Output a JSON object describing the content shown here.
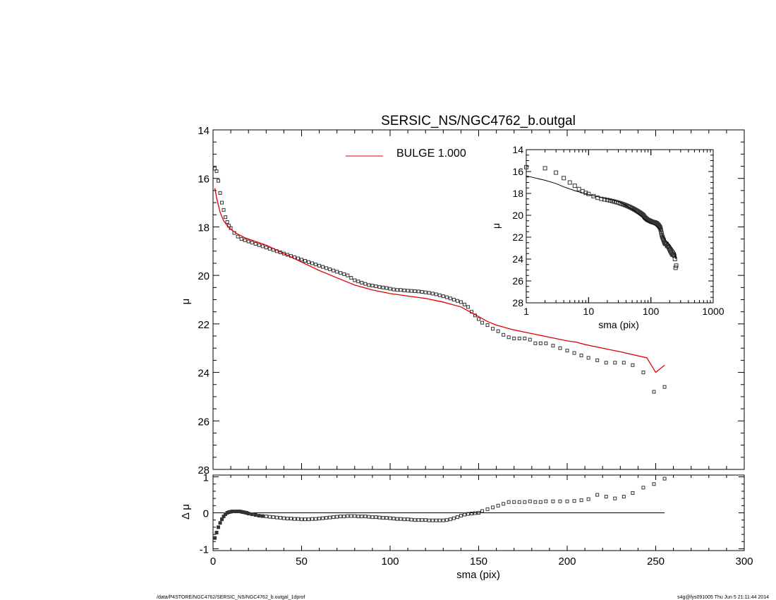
{
  "footer": {
    "path": "/data/P4STORE/NGC4762/SERSIC_NS/NGC4762_b.outgal_1dprof",
    "stamp": "s4g@fys091005  Thu Jun  5 21:11:44 2014"
  },
  "colors": {
    "model": "#e00000",
    "data": "#333333",
    "axes": "#000000",
    "zero_line": "#000000"
  },
  "chart_data": [
    {
      "type": "scatter",
      "panel": "main-profile",
      "title": "SERSIC_NS/NGC4762_b.outgal",
      "xlabel": "",
      "ylabel": "μ",
      "xlim": [
        0,
        300
      ],
      "ylim": [
        28,
        14
      ],
      "y_inverted": true,
      "x_tick_labels": [],
      "y_ticks": [
        14,
        16,
        18,
        20,
        22,
        24,
        26,
        28
      ],
      "legend": {
        "placement": "top-center",
        "entries": [
          {
            "label": "BULGE  1.000",
            "color": "#e00000",
            "style": "line"
          }
        ]
      },
      "observed": {
        "marker": "square",
        "x": [
          1,
          2,
          3,
          4,
          5,
          6,
          7,
          8,
          9,
          10,
          12,
          14,
          16,
          18,
          20,
          22,
          24,
          26,
          28,
          30,
          32,
          34,
          36,
          38,
          40,
          42,
          44,
          46,
          48,
          50,
          52,
          54,
          56,
          58,
          60,
          62,
          64,
          66,
          68,
          70,
          72,
          74,
          76,
          78,
          80,
          82,
          84,
          86,
          88,
          90,
          92,
          94,
          96,
          98,
          100,
          102,
          104,
          106,
          108,
          110,
          112,
          114,
          116,
          118,
          120,
          122,
          124,
          126,
          128,
          130,
          132,
          134,
          136,
          138,
          140,
          142,
          144,
          146,
          148,
          150,
          152,
          155,
          158,
          161,
          164,
          167,
          170,
          173,
          176,
          179,
          182,
          185,
          188,
          192,
          196,
          200,
          204,
          208,
          212,
          217,
          222,
          227,
          232,
          237,
          243,
          249,
          255
        ],
        "y": [
          15.6,
          15.7,
          16.1,
          16.6,
          17.0,
          17.3,
          17.6,
          17.8,
          17.95,
          18.05,
          18.25,
          18.4,
          18.5,
          18.55,
          18.6,
          18.65,
          18.7,
          18.75,
          18.8,
          18.85,
          18.9,
          18.95,
          19.0,
          19.05,
          19.1,
          19.15,
          19.2,
          19.25,
          19.3,
          19.35,
          19.4,
          19.45,
          19.5,
          19.55,
          19.6,
          19.65,
          19.7,
          19.75,
          19.8,
          19.85,
          19.9,
          19.95,
          20.0,
          20.1,
          20.2,
          20.25,
          20.3,
          20.35,
          20.4,
          20.42,
          20.45,
          20.48,
          20.5,
          20.52,
          20.55,
          20.58,
          20.6,
          20.6,
          20.62,
          20.63,
          20.64,
          20.65,
          20.66,
          20.68,
          20.7,
          20.72,
          20.75,
          20.78,
          20.82,
          20.86,
          20.9,
          20.95,
          21.0,
          21.05,
          21.1,
          21.2,
          21.3,
          21.5,
          21.65,
          21.8,
          21.95,
          22.05,
          22.2,
          22.3,
          22.45,
          22.55,
          22.6,
          22.6,
          22.6,
          22.65,
          22.8,
          22.8,
          22.8,
          22.9,
          23.0,
          23.1,
          23.2,
          23.3,
          23.4,
          23.5,
          23.6,
          23.6,
          23.6,
          23.7,
          24.0,
          24.8,
          24.6
        ]
      },
      "model": {
        "x": [
          1,
          2,
          3,
          4,
          6,
          8,
          10,
          14,
          18,
          22,
          26,
          30,
          40,
          50,
          60,
          70,
          80,
          90,
          100,
          110,
          120,
          130,
          140,
          145,
          150,
          155,
          160,
          170,
          180,
          190,
          200,
          205,
          210,
          220,
          230,
          245,
          250,
          255
        ],
        "y": [
          16.4,
          16.8,
          17.1,
          17.4,
          17.75,
          17.95,
          18.1,
          18.3,
          18.45,
          18.55,
          18.65,
          18.75,
          19.1,
          19.45,
          19.8,
          20.1,
          20.4,
          20.6,
          20.75,
          20.85,
          20.95,
          21.1,
          21.3,
          21.5,
          21.7,
          21.9,
          22.05,
          22.25,
          22.4,
          22.55,
          22.7,
          22.75,
          22.85,
          23.0,
          23.15,
          23.4,
          24.0,
          23.7
        ]
      }
    },
    {
      "type": "scatter",
      "panel": "residuals",
      "xlabel": "sma (pix)",
      "ylabel": "Δ μ",
      "xlim": [
        0,
        300
      ],
      "ylim": [
        -1.05,
        1.05
      ],
      "x_ticks": [
        0,
        50,
        100,
        150,
        200,
        250,
        300
      ],
      "y_ticks": [
        1,
        0,
        -1
      ],
      "zero_line": {
        "x": [
          0,
          255
        ],
        "y": 0
      },
      "residual": {
        "marker": "square",
        "x": [
          1,
          2,
          3,
          4,
          5,
          6,
          7,
          8,
          9,
          10,
          11,
          12,
          13,
          14,
          15,
          16,
          17,
          18,
          19,
          20,
          22,
          24,
          26,
          28,
          30,
          32,
          34,
          36,
          38,
          40,
          42,
          44,
          46,
          48,
          50,
          52,
          54,
          56,
          58,
          60,
          62,
          64,
          66,
          68,
          70,
          72,
          74,
          76,
          78,
          80,
          82,
          84,
          86,
          88,
          90,
          92,
          94,
          96,
          98,
          100,
          102,
          104,
          106,
          108,
          110,
          112,
          114,
          116,
          118,
          120,
          122,
          124,
          126,
          128,
          130,
          132,
          134,
          136,
          138,
          140,
          142,
          144,
          146,
          148,
          150,
          152,
          155,
          158,
          161,
          164,
          167,
          170,
          173,
          176,
          179,
          182,
          185,
          188,
          192,
          196,
          200,
          204,
          208,
          212,
          217,
          222,
          227,
          232,
          237,
          243,
          249,
          255
        ],
        "y": [
          -0.7,
          -0.55,
          -0.4,
          -0.28,
          -0.18,
          -0.1,
          -0.04,
          0.0,
          0.02,
          0.03,
          0.04,
          0.04,
          0.04,
          0.04,
          0.04,
          0.03,
          0.02,
          0.01,
          0.0,
          -0.02,
          -0.04,
          -0.06,
          -0.08,
          -0.09,
          -0.1,
          -0.11,
          -0.12,
          -0.13,
          -0.14,
          -0.15,
          -0.16,
          -0.16,
          -0.17,
          -0.17,
          -0.18,
          -0.18,
          -0.18,
          -0.17,
          -0.17,
          -0.16,
          -0.15,
          -0.14,
          -0.13,
          -0.12,
          -0.11,
          -0.1,
          -0.1,
          -0.09,
          -0.09,
          -0.09,
          -0.1,
          -0.1,
          -0.1,
          -0.11,
          -0.12,
          -0.12,
          -0.13,
          -0.14,
          -0.14,
          -0.15,
          -0.16,
          -0.17,
          -0.17,
          -0.18,
          -0.18,
          -0.19,
          -0.2,
          -0.2,
          -0.2,
          -0.2,
          -0.21,
          -0.21,
          -0.21,
          -0.21,
          -0.21,
          -0.2,
          -0.18,
          -0.15,
          -0.12,
          -0.08,
          -0.05,
          -0.03,
          -0.02,
          -0.01,
          0.0,
          0.05,
          0.1,
          0.15,
          0.2,
          0.25,
          0.3,
          0.3,
          0.3,
          0.3,
          0.32,
          0.3,
          0.3,
          0.32,
          0.32,
          0.32,
          0.32,
          0.33,
          0.35,
          0.38,
          0.5,
          0.45,
          0.4,
          0.45,
          0.55,
          0.7,
          0.8,
          0.95
        ]
      }
    },
    {
      "type": "scatter",
      "panel": "inset-log",
      "xlabel": "sma (pix)",
      "ylabel": "μ",
      "x_scale": "log",
      "xlim": [
        1,
        1000
      ],
      "ylim": [
        28,
        14
      ],
      "y_inverted": true,
      "x_ticks": [
        1,
        10,
        100,
        1000
      ],
      "y_ticks": [
        14,
        16,
        18,
        20,
        22,
        24,
        26,
        28
      ],
      "observed_ref": "main-profile",
      "model_ref": "main-profile"
    }
  ]
}
